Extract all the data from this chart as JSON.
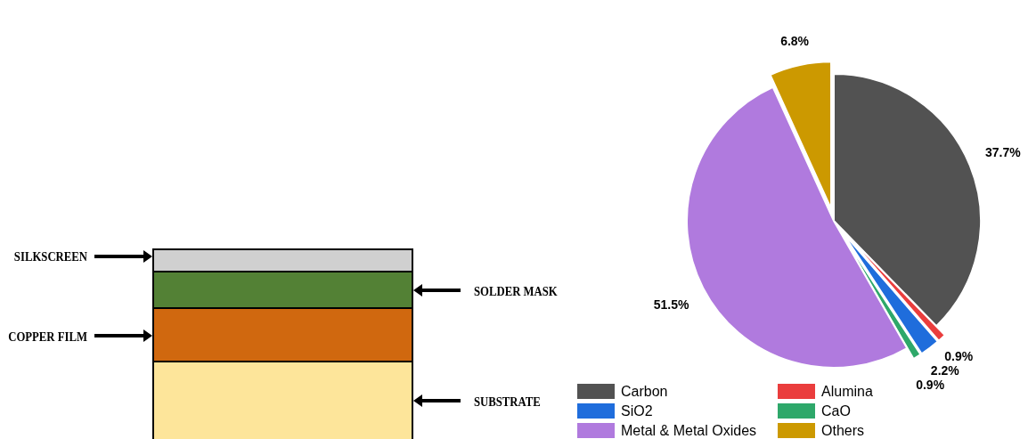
{
  "chart_data": [
    {
      "type": "other",
      "annotations": [
        "SILKSCREEN",
        "SOLDER MASK",
        "COPPER FILM",
        "SUBSTRATE"
      ]
    },
    {
      "type": "pie",
      "categories": [
        "Carbon",
        "Alumina",
        "SiO2",
        "CaO",
        "Metal & Metal Oxides",
        "Others"
      ],
      "values": [
        37.7,
        0.9,
        2.2,
        0.9,
        51.5,
        6.8
      ],
      "colors": [
        "#525252",
        "#ea3d3d",
        "#1f6ddc",
        "#2ea86a",
        "#b07ade",
        "#cc9900"
      ],
      "value_labels": [
        "37.7%",
        "0.9%",
        "2.2%",
        "0.9%",
        "51.5%",
        "6.8%"
      ],
      "legend": "bottom"
    }
  ]
}
